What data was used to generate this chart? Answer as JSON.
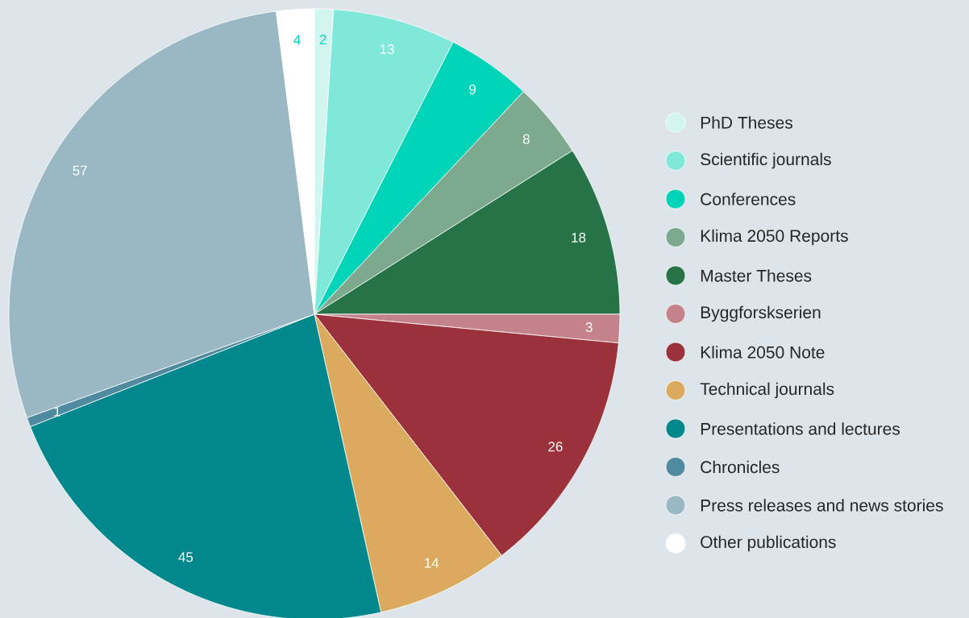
{
  "chart_data": {
    "type": "pie",
    "categories": [
      "PhD Theses",
      "Scientific journals",
      "Conferences",
      "Klima 2050 Reports",
      "Master Theses",
      "Byggforskserien",
      "Klima 2050 Note",
      "Technical journals",
      "Presentations and lectures",
      "Chronicles",
      "Press releases and news stories",
      "Other publications"
    ],
    "values": [
      2,
      13,
      9,
      8,
      18,
      3,
      26,
      14,
      45,
      1,
      57,
      4
    ],
    "colors": [
      "#d3f5ef",
      "#80e8d9",
      "#00d4b8",
      "#7daa8f",
      "#257347",
      "#c4838a",
      "#9b323b",
      "#dcaa5f",
      "#00888c",
      "#4f8a9e",
      "#9ab8c3",
      "#ffffff"
    ],
    "data_labels": true,
    "legend": "right"
  }
}
